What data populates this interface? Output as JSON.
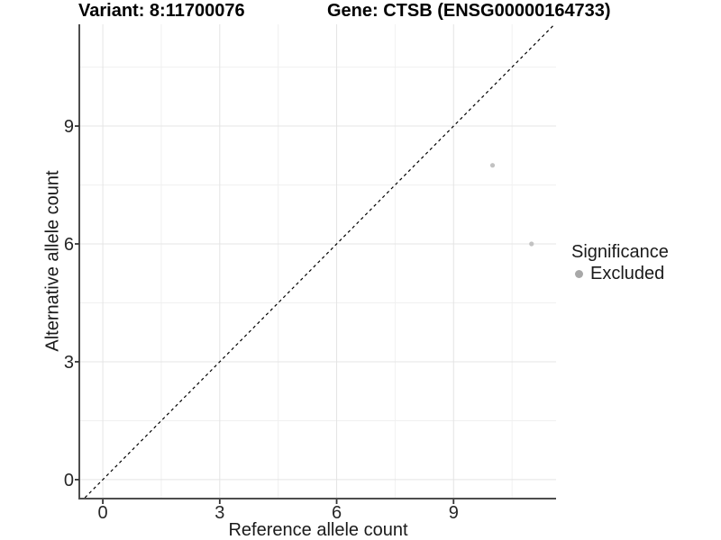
{
  "chart_data": {
    "type": "scatter",
    "title_left": "Variant: 8:11700076",
    "title_right": "Gene: CTSB (ENSG00000164733)",
    "xlabel": "Reference allele count",
    "ylabel": "Alternative allele count",
    "x_ticks": [
      0,
      3,
      6,
      9
    ],
    "y_ticks": [
      0,
      3,
      6,
      9
    ],
    "x_minor": [
      1.5,
      4.5,
      7.5,
      10.5
    ],
    "y_minor": [
      1.5,
      4.5,
      7.5,
      10.5
    ],
    "xlim": [
      -0.58,
      11.63
    ],
    "ylim": [
      -0.46,
      11.59
    ],
    "grid": true,
    "points": [
      {
        "x": 10,
        "y": 8,
        "significance": "Excluded"
      },
      {
        "x": 11,
        "y": 6,
        "significance": "Excluded"
      }
    ],
    "reference_line": {
      "type": "identity",
      "slope": 1,
      "intercept": 0,
      "style": "dashed",
      "color": "#000000"
    },
    "legend": {
      "title": "Significance",
      "position": "right",
      "items": [
        {
          "label": "Excluded",
          "color": "#a8a8a8"
        }
      ]
    },
    "colors": {
      "point": "#c2c2c2",
      "grid_major": "#e4e4e4",
      "grid_minor": "#f0f0f0",
      "axis_line": "#4d4d4d",
      "tick": "#333333",
      "tick_text": "#262626"
    }
  }
}
